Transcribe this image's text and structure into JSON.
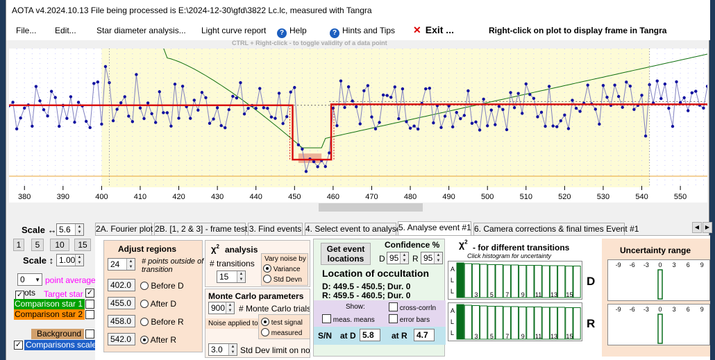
{
  "window": {
    "title": "AOTA v4.2024.10.13     File being processed is E:\\2024-12-30\\gfd\\3822 Lc.lc, measured with Tangra"
  },
  "menu": {
    "file": "File...",
    "edit": "Edit...",
    "star_diameter": "Star diameter analysis...",
    "light_curve": "Light curve report",
    "help": "Help",
    "hints": "Hints and Tips",
    "exit": "Exit ...",
    "rightclick_hint": "Right-click on plot to display frame in Tangra"
  },
  "plot": {
    "hint": "CTRL + Right-click  -  to toggle validity of a data point",
    "x_ticks": [
      "380",
      "390",
      "400",
      "410",
      "420",
      "430",
      "440",
      "450",
      "460",
      "470",
      "480",
      "490",
      "500",
      "510",
      "520",
      "530",
      "540",
      "550"
    ],
    "x_range": [
      376,
      557
    ],
    "y_range": [
      -1.5,
      1.2
    ],
    "search_region": [
      400,
      542
    ],
    "event": {
      "D": 450,
      "R": 460,
      "before_D": 402,
      "after_D": 455,
      "before_R": 458,
      "after_R": 542
    },
    "levels": {
      "baseline": 0,
      "event": -1.1
    },
    "colors": {
      "data": "#1010a0",
      "fit": "#d81010",
      "trend": "#107010",
      "region": "#fdfbd6",
      "event_box": "#e8a088"
    }
  },
  "left_panel": {
    "scale_x_label": "Scale ↔",
    "scale_x_value": "5.6",
    "scale_buttons": [
      "1",
      "5",
      "10",
      "15"
    ],
    "scale_y_label": "Scale ↕",
    "scale_y_value": "1.00",
    "point_avg_value": "0",
    "point_avg_label": "point average",
    "plots_label": "ots",
    "target_star": "Target star",
    "comp1": "Comparison star 1",
    "comp2": "Comparison star 2",
    "background": "Background",
    "comps_scaled": "Comparisons scaled",
    "colors": {
      "target": "#ff00ff",
      "comp1": "#00a000",
      "comp2": "#ff8c00",
      "background": "#d2a06c",
      "comps": "#1e5fc8"
    }
  },
  "tabs": [
    "2A. Fourier plot",
    "2B. [1, 2 & 3] - frame test",
    "3. Find events",
    "4. Select event to analyse",
    "5. Analyse event #1",
    "6. Camera corrections & final times Event #1"
  ],
  "adjust": {
    "title": "Adjust regions",
    "points_value": "24",
    "points_label": "# points outside of transition",
    "rows": [
      {
        "value": "402.0",
        "label": "Before D"
      },
      {
        "value": "455.0",
        "label": "After D"
      },
      {
        "value": "458.0",
        "label": "Before R"
      },
      {
        "value": "542.0",
        "label": "After R"
      }
    ]
  },
  "chi2": {
    "title": "analysis",
    "transitions_label": "# transitions",
    "transitions_value": "15",
    "noise_title": "Vary noise by",
    "noise_opt1": "Variance",
    "noise_opt2": "Std Devn"
  },
  "monte": {
    "title": "Monte Carlo parameters",
    "trials_value": "900",
    "trials_label": "# Monte Carlo trials",
    "noise_applied": "Noise applied to",
    "opt1": "test signal",
    "opt2": "measured",
    "sd_value": "3.0",
    "sd_label": "Std Dev limit on noise"
  },
  "event": {
    "get_button": "Get event locations",
    "confidence_title": "Confidence %",
    "d_label": "D",
    "d_value": "95",
    "r_label": "R",
    "r_value": "95",
    "location_title": "Location of occultation",
    "d_line": "D: 449.5 - 450.5; Dur. 0",
    "r_line": "R: 459.5 - 460.5; Dur. 0",
    "show_label": "Show:",
    "cross_corr": "cross-corrln",
    "meas_means": "meas. means",
    "error_bars": "error bars",
    "sn_label": "S/N",
    "at_d": "at D",
    "sn_d": "5.8",
    "at_r": "at R",
    "sn_r": "4.7"
  },
  "transitions": {
    "title": "- for different transitions",
    "subtitle": "Click histogram for uncertainty",
    "all_label": "A\nL\nL",
    "bar_labels": [
      "3",
      "5",
      "7",
      "9",
      "11",
      "13",
      "15"
    ],
    "bar_heights": [
      1,
      0.98,
      0.97,
      0.96,
      0.95,
      0.95,
      0.94,
      0.94,
      0.93,
      0.93,
      0.93,
      0.92,
      0.92,
      0.92,
      0.91,
      0.91
    ]
  },
  "uncertainty": {
    "title": "Uncertainty range",
    "ticks": [
      "-9",
      "-6",
      "-3",
      "0",
      "3",
      "6",
      "9"
    ],
    "d_label": "D",
    "r_label": "R"
  }
}
